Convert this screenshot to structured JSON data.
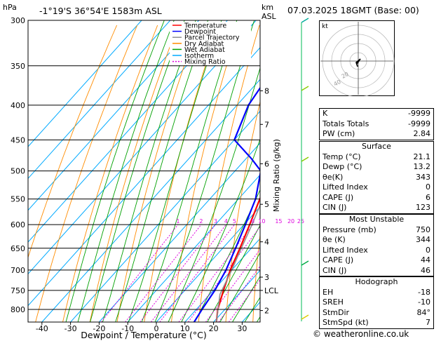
{
  "header": {
    "location": "-1°19'S  36°54'E  1583m  ASL",
    "datetime": "07.03.2025  18GMT  (Base: 00)",
    "pressure_unit": "hPa",
    "height_unit_1": "km",
    "height_unit_2": "ASL"
  },
  "footer": {
    "credit": "© weatheronline.co.uk"
  },
  "chart_data": {
    "type": "line",
    "title": "",
    "xlabel": "Dewpoint / Temperature (°C)",
    "ylabel_right": "Mixing Ratio (g/kg)",
    "x_ticks": [
      "-40",
      "-30",
      "-20",
      "-10",
      "0",
      "10",
      "20",
      "30"
    ],
    "pressure_levels": [
      "300",
      "350",
      "400",
      "450",
      "500",
      "550",
      "600",
      "650",
      "700",
      "750",
      "800"
    ],
    "km_ticks": [
      {
        "label": "8",
        "p": 381
      },
      {
        "label": "7",
        "p": 427
      },
      {
        "label": "6",
        "p": 488
      },
      {
        "label": "5",
        "p": 560
      },
      {
        "label": "4",
        "p": 636
      },
      {
        "label": "3",
        "p": 717
      },
      {
        "label": "LCL",
        "p": 750
      },
      {
        "label": "2",
        "p": 803
      }
    ],
    "mixing_ratio_labels": [
      "1",
      "2",
      "3",
      "4",
      "5",
      "8",
      "10",
      "15",
      "20",
      "25"
    ],
    "mixing_ratio_values": [
      1,
      2,
      3,
      4,
      5,
      8,
      10,
      15,
      20,
      25
    ],
    "legend": [
      {
        "name": "Temperature",
        "color": "#ff0000"
      },
      {
        "name": "Dewpoint",
        "color": "#0000ff"
      },
      {
        "name": "Parcel Trajectory",
        "color": "#909090"
      },
      {
        "name": "Dry Adiabat",
        "color": "#ff8c00"
      },
      {
        "name": "Wet Adiabat",
        "color": "#00a000"
      },
      {
        "name": "Isotherm",
        "color": "#00aaff"
      },
      {
        "name": "Mixing Ratio",
        "color": "#dd00dd"
      }
    ],
    "series": [
      {
        "name": "Temperature",
        "color": "#ff0000",
        "points": [
          [
            835,
            21.0
          ],
          [
            800,
            17.5
          ],
          [
            750,
            13.5
          ],
          [
            700,
            9.5
          ],
          [
            650,
            6.0
          ],
          [
            600,
            2.0
          ],
          [
            550,
            -2.5
          ],
          [
            500,
            -6.5
          ],
          [
            470,
            -7.0
          ],
          [
            450,
            -8.0
          ],
          [
            400,
            -15.0
          ],
          [
            350,
            -23.0
          ],
          [
            300,
            -32.0
          ]
        ]
      },
      {
        "name": "Dewpoint",
        "color": "#0000ff",
        "points": [
          [
            835,
            13.2
          ],
          [
            800,
            12.0
          ],
          [
            750,
            10.5
          ],
          [
            700,
            8.0
          ],
          [
            650,
            4.5
          ],
          [
            600,
            0.5
          ],
          [
            550,
            -4.0
          ],
          [
            500,
            -11.0
          ],
          [
            480,
            -18.0
          ],
          [
            450,
            -30.0
          ],
          [
            400,
            -36.0
          ],
          [
            350,
            -39.0
          ],
          [
            300,
            -38.0
          ]
        ]
      },
      {
        "name": "Parcel Trajectory",
        "color": "#909090",
        "points": [
          [
            835,
            21.0
          ],
          [
            760,
            13.5
          ],
          [
            700,
            10.0
          ],
          [
            650,
            6.5
          ],
          [
            600,
            2.8
          ],
          [
            550,
            -1.5
          ],
          [
            500,
            -6.5
          ],
          [
            450,
            -12.0
          ],
          [
            400,
            -18.5
          ],
          [
            350,
            -26.0
          ],
          [
            300,
            -35.0
          ]
        ]
      }
    ]
  },
  "hodograph": {
    "label": "kt",
    "ring_labels": [
      "20",
      "40"
    ]
  },
  "indices": {
    "k_label": "K",
    "k": "-9999",
    "tt_label": "Totals Totals",
    "tt": "-9999",
    "pw_label": "PW (cm)",
    "pw": "2.84"
  },
  "surface": {
    "title": "Surface",
    "rows": [
      {
        "label": "Temp (°C)",
        "value": "21.1"
      },
      {
        "label": "Dewp (°C)",
        "value": "13.2"
      },
      {
        "label": "θe(K)",
        "value": "343"
      },
      {
        "label": "Lifted Index",
        "value": "0"
      },
      {
        "label": "CAPE (J)",
        "value": "6"
      },
      {
        "label": "CIN (J)",
        "value": "123"
      }
    ]
  },
  "most_unstable": {
    "title": "Most Unstable",
    "rows": [
      {
        "label": "Pressure (mb)",
        "value": "750"
      },
      {
        "label": "θe (K)",
        "value": "344"
      },
      {
        "label": "Lifted Index",
        "value": "0"
      },
      {
        "label": "CAPE (J)",
        "value": "44"
      },
      {
        "label": "CIN (J)",
        "value": "46"
      }
    ]
  },
  "hodograph_table": {
    "title": "Hodograph",
    "rows": [
      {
        "label": "EH",
        "value": "-18"
      },
      {
        "label": "SREH",
        "value": "-10"
      },
      {
        "label": "StmDir",
        "value": "84°"
      },
      {
        "label": "StmSpd (kt)",
        "value": "7"
      }
    ]
  }
}
